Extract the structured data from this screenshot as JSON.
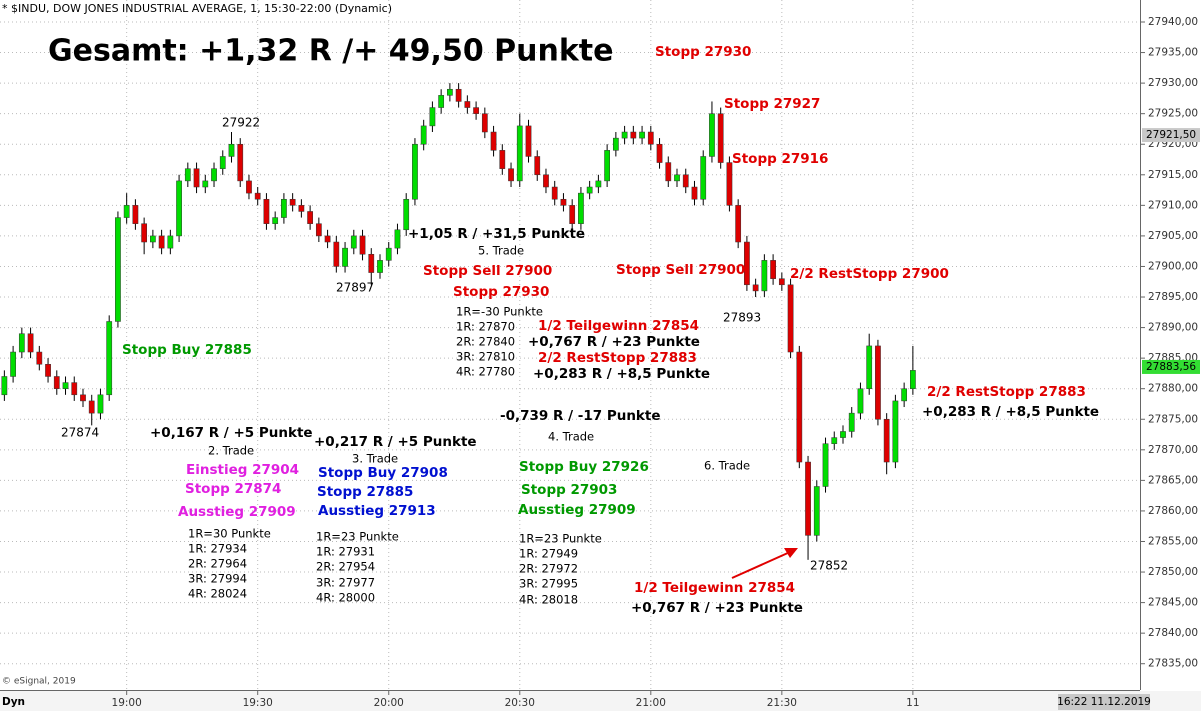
{
  "chart_data": {
    "type": "candlestick",
    "title": "* $INDU, DOW JONES INDUSTRIAL AVERAGE, 1, 15:30-22:00 (Dynamic)",
    "up_color": "#00dd00",
    "down_color": "#dd0000",
    "grid": true,
    "xlim": [
      1111,
      1372
    ],
    "ylim": [
      27830.7,
      27943.6
    ],
    "xticks": [
      {
        "value": 1140,
        "label": "19:00"
      },
      {
        "value": 1170,
        "label": "19:30"
      },
      {
        "value": 1200,
        "label": "20:00"
      },
      {
        "value": 1230,
        "label": "20:30"
      },
      {
        "value": 1260,
        "label": "21:00"
      },
      {
        "value": 1290,
        "label": "21:30"
      },
      {
        "value": 1320,
        "label": "11"
      }
    ],
    "yticks": [
      {
        "value": 27835,
        "label": "27835,00"
      },
      {
        "value": 27840,
        "label": "27840,00"
      },
      {
        "value": 27845,
        "label": "27845,00"
      },
      {
        "value": 27850,
        "label": "27850,00"
      },
      {
        "value": 27855,
        "label": "27855,00"
      },
      {
        "value": 27860,
        "label": "27860,00"
      },
      {
        "value": 27865,
        "label": "27865,00"
      },
      {
        "value": 27870,
        "label": "27870,00"
      },
      {
        "value": 27875,
        "label": "27875,00"
      },
      {
        "value": 27880,
        "label": "27880,00"
      },
      {
        "value": 27885,
        "label": "27885,00"
      },
      {
        "value": 27890,
        "label": "27890,00"
      },
      {
        "value": 27895,
        "label": "27895,00"
      },
      {
        "value": 27900,
        "label": "27900,00"
      },
      {
        "value": 27905,
        "label": "27905,00"
      },
      {
        "value": 27910,
        "label": "27910,00"
      },
      {
        "value": 27915,
        "label": "27915,00"
      },
      {
        "value": 27920,
        "label": "27920,00"
      },
      {
        "value": 27925,
        "label": "27925,00"
      },
      {
        "value": 27930,
        "label": "27930,00"
      },
      {
        "value": 27935,
        "label": "27935,00"
      },
      {
        "value": 27940,
        "label": "27940,00"
      }
    ],
    "price_markers": [
      {
        "value": 27921.5,
        "label": "27921,50",
        "color": "#c8c8c8"
      },
      {
        "value": 27883.56,
        "label": "27883,56",
        "color": "#33dd33"
      }
    ],
    "x": [
      1112,
      1114,
      1116,
      1118,
      1120,
      1122,
      1124,
      1126,
      1128,
      1130,
      1132,
      1134,
      1136,
      1138,
      1140,
      1142,
      1144,
      1146,
      1148,
      1150,
      1152,
      1154,
      1156,
      1158,
      1160,
      1162,
      1164,
      1166,
      1168,
      1170,
      1172,
      1174,
      1176,
      1178,
      1180,
      1182,
      1184,
      1186,
      1188,
      1190,
      1192,
      1194,
      1196,
      1198,
      1200,
      1202,
      1204,
      1206,
      1208,
      1210,
      1212,
      1214,
      1216,
      1218,
      1220,
      1222,
      1224,
      1226,
      1228,
      1230,
      1232,
      1234,
      1236,
      1238,
      1240,
      1242,
      1244,
      1246,
      1248,
      1250,
      1252,
      1254,
      1256,
      1258,
      1260,
      1262,
      1264,
      1266,
      1268,
      1270,
      1272,
      1274,
      1276,
      1278,
      1280,
      1282,
      1284,
      1286,
      1288,
      1290,
      1292,
      1294,
      1296,
      1298,
      1300,
      1302,
      1304,
      1306,
      1308,
      1310,
      1312,
      1314,
      1316,
      1318,
      1320
    ],
    "open": [
      27879,
      27882,
      27886,
      27889,
      27886,
      27884,
      27882,
      27880,
      27881,
      27879,
      27878,
      27876,
      27879,
      27891,
      27908,
      27910,
      27907,
      27904,
      27905,
      27903,
      27905,
      27914,
      27916,
      27913,
      27914,
      27916,
      27918,
      27920,
      27914,
      27912,
      27911,
      27907,
      27908,
      27911,
      27910,
      27909,
      27907,
      27905,
      27904,
      27900,
      27903,
      27905,
      27902,
      27899,
      27901,
      27903,
      27906,
      27911,
      27920,
      27923,
      27926,
      27928,
      27929,
      27927,
      27926,
      27925,
      27922,
      27919,
      27916,
      27914,
      27923,
      27918,
      27915,
      27913,
      27911,
      27910,
      27907,
      27912,
      27913,
      27914,
      27919,
      27921,
      27922,
      27921,
      27922,
      27920,
      27917,
      27914,
      27915,
      27913,
      27911,
      27918,
      27925,
      27917,
      27910,
      27904,
      27897,
      27896,
      27901,
      27898,
      27897,
      27886,
      27868,
      27856,
      27864,
      27871,
      27872,
      27873,
      27876,
      27880,
      27887,
      27875,
      27868,
      27878,
      27880
    ],
    "high": [
      27883,
      27887,
      27890,
      27890,
      27887,
      27885,
      27883,
      27882,
      27882,
      27880,
      27879,
      27880,
      27892,
      27909,
      27912,
      27911,
      27908,
      27906,
      27906,
      27906,
      27915,
      27917,
      27917,
      27915,
      27917,
      27919,
      27922,
      27921,
      27915,
      27913,
      27912,
      27909,
      27912,
      27912,
      27911,
      27910,
      27908,
      27906,
      27905,
      27904,
      27906,
      27906,
      27903,
      27902,
      27904,
      27907,
      27912,
      27921,
      27924,
      27927,
      27929,
      27930,
      27930,
      27928,
      27927,
      27926,
      27923,
      27920,
      27917,
      27925,
      27924,
      27919,
      27916,
      27914,
      27912,
      27911,
      27913,
      27914,
      27915,
      27920,
      27922,
      27923,
      27923,
      27923,
      27923,
      27921,
      27918,
      27916,
      27916,
      27914,
      27919,
      27927,
      27926,
      27918,
      27911,
      27905,
      27898,
      27902,
      27902,
      27899,
      27898,
      27887,
      27869,
      27865,
      27872,
      27873,
      27874,
      27877,
      27881,
      27889,
      27888,
      27876,
      27879,
      27881,
      27887
    ],
    "low": [
      27878,
      27881,
      27885,
      27885,
      27883,
      27881,
      27879,
      27879,
      27878,
      27877,
      27874,
      27875,
      27878,
      27890,
      27907,
      27906,
      27902,
      27903,
      27902,
      27902,
      27904,
      27913,
      27912,
      27912,
      27913,
      27915,
      27917,
      27913,
      27911,
      27910,
      27906,
      27906,
      27907,
      27909,
      27908,
      27906,
      27904,
      27903,
      27899,
      27899,
      27902,
      27901,
      27897,
      27898,
      27900,
      27902,
      27905,
      27910,
      27919,
      27922,
      27925,
      27927,
      27926,
      27925,
      27924,
      27921,
      27918,
      27915,
      27913,
      27913,
      27917,
      27914,
      27912,
      27910,
      27909,
      27905,
      27906,
      27911,
      27912,
      27913,
      27918,
      27920,
      27920,
      27920,
      27919,
      27916,
      27913,
      27913,
      27912,
      27910,
      27910,
      27917,
      27916,
      27909,
      27903,
      27896,
      27895,
      27895,
      27897,
      27896,
      27885,
      27867,
      27852,
      27855,
      27863,
      27870,
      27871,
      27872,
      27875,
      27879,
      27874,
      27866,
      27867,
      27877,
      27879
    ],
    "close": [
      27882,
      27886,
      27889,
      27886,
      27884,
      27882,
      27880,
      27881,
      27879,
      27878,
      27876,
      27879,
      27891,
      27908,
      27910,
      27907,
      27904,
      27905,
      27903,
      27905,
      27914,
      27916,
      27913,
      27914,
      27916,
      27918,
      27920,
      27914,
      27912,
      27911,
      27907,
      27908,
      27911,
      27910,
      27909,
      27907,
      27905,
      27904,
      27900,
      27903,
      27905,
      27902,
      27899,
      27901,
      27903,
      27906,
      27911,
      27920,
      27923,
      27926,
      27928,
      27929,
      27927,
      27926,
      27925,
      27922,
      27919,
      27916,
      27914,
      27923,
      27918,
      27915,
      27913,
      27911,
      27910,
      27907,
      27912,
      27913,
      27914,
      27919,
      27921,
      27922,
      27921,
      27922,
      27920,
      27917,
      27914,
      27915,
      27913,
      27911,
      27918,
      27925,
      27917,
      27910,
      27904,
      27897,
      27896,
      27901,
      27898,
      27897,
      27886,
      27868,
      27856,
      27864,
      27871,
      27872,
      27873,
      27876,
      27880,
      27887,
      27875,
      27868,
      27878,
      27880,
      27883
    ],
    "annotations": [
      "Gesamt: +1,32 R /+ 49,50 Punkte",
      "Stopp 27930",
      "27922",
      "Stopp 27927",
      "Stopp 27916",
      "+1,05 R / +31,5 Punkte",
      "5. Trade",
      "27897",
      "Stopp Sell 27900",
      "Stopp 27930",
      "Stopp Sell 27900",
      "2/2 RestStopp 27900",
      "27893",
      "1R=-30 Punkte",
      "1R: 27870",
      "2R: 27840",
      "3R: 27810",
      "4R: 27780",
      "1/2 Teilgewinn 27854",
      "+0,767 R / +23 Punkte",
      "2/2 RestStopp 27883",
      "+0,283 R / +8,5 Punkte",
      "Stopp Buy 27885",
      "27874",
      "+0,167 R / +5 Punkte",
      "2. Trade",
      "Einstieg 27904",
      "Stopp 27874",
      "Ausstieg 27909",
      "1R=30 Punkte",
      "1R: 27934",
      "2R: 27964",
      "3R: 27994",
      "4R: 28024",
      "+0,217 R / +5 Punkte",
      "3. Trade",
      "Stopp Buy 27908",
      "Stopp 27885",
      "Ausstieg 27913",
      "1R=23 Punkte",
      "1R: 27931",
      "2R: 27954",
      "3R: 27977",
      "4R: 28000",
      "-0,739 R / -17 Punkte",
      "4. Trade",
      "Stopp Buy 27926",
      "Stopp 27903",
      "Ausstieg 27909",
      "1R=23 Punkte",
      "1R: 27949",
      "2R: 27972",
      "3R: 27995",
      "4R: 28018",
      "6. Trade",
      "27852",
      "1/2 Teilgewinn 27854",
      "+0,767 R / +23 Punkte",
      "2/2 RestStopp 27883",
      "+0,283 R / +8,5 Punkte"
    ],
    "credit": "© eSignal, 2019",
    "mode": "Dyn",
    "timestamp": "16:22 11.12.2019"
  }
}
